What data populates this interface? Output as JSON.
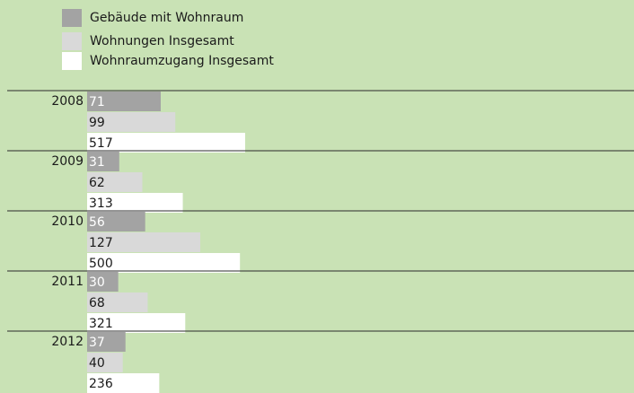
{
  "chart_data": {
    "type": "bar",
    "orientation": "horizontal",
    "categories": [
      "2008",
      "2009",
      "2010",
      "2011",
      "2012"
    ],
    "series": [
      {
        "name": "Gebäude mit Wohnraum",
        "color": "#a3a3a3",
        "values": [
          71,
          31,
          56,
          30,
          37
        ]
      },
      {
        "name": "Wohnungen Insgesamt",
        "color": "#d9d9d9",
        "values": [
          99,
          62,
          127,
          68,
          40
        ]
      },
      {
        "name": "Wohnraumzugang Insgesamt",
        "color": "#ffffff",
        "values": [
          517,
          313,
          500,
          321,
          236
        ]
      }
    ],
    "legend": "top-left"
  }
}
